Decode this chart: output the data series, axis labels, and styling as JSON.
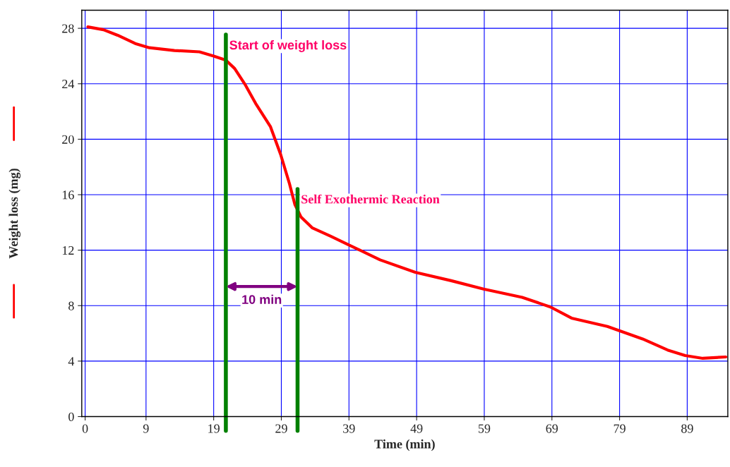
{
  "chart_data": {
    "type": "line",
    "xlabel": "Time (min)",
    "ylabel": "Weight loss (mg)",
    "x": [
      0.4,
      2.7,
      4.8,
      7.4,
      9.5,
      13.2,
      16.9,
      19,
      20.8,
      22.1,
      23.7,
      25.3,
      27.4,
      28.9,
      30.2,
      31.0,
      31.9,
      33.6,
      36.3,
      38.9,
      43.6,
      48.8,
      54.1,
      58.9,
      64.6,
      68.8,
      71.9,
      77.2,
      82.4,
      86.1,
      88.7,
      91.3,
      94.7
    ],
    "series": [
      {
        "color": "#ff0000",
        "values": [
          28.1,
          27.9,
          27.5,
          26.9,
          26.6,
          26.4,
          26.3,
          26.0,
          25.7,
          25.1,
          23.9,
          22.5,
          20.9,
          18.9,
          16.8,
          15.3,
          14.4,
          13.6,
          13.0,
          12.4,
          11.3,
          10.4,
          9.8,
          9.2,
          8.6,
          7.9,
          7.1,
          6.5,
          5.6,
          4.8,
          4.4,
          4.2,
          4.3
        ]
      }
    ],
    "xlim": [
      -0.5,
      95
    ],
    "xticks": [
      0,
      9,
      19,
      29,
      39,
      49,
      59,
      69,
      79,
      89
    ],
    "ylim": [
      0,
      29.3
    ],
    "yticks": [
      0,
      4,
      8,
      12,
      16,
      20,
      24,
      28
    ],
    "grid": true,
    "marker": "none",
    "line_style": "solid",
    "ref_lines": [
      {
        "axis": "x",
        "value": 20.8,
        "label": "Start of weight loss",
        "color": "#008000"
      },
      {
        "axis": "x",
        "value": 31.4,
        "label": "Self Exothermic Reaction",
        "color": "#008000"
      }
    ],
    "annotations": [
      "10 min"
    ]
  }
}
